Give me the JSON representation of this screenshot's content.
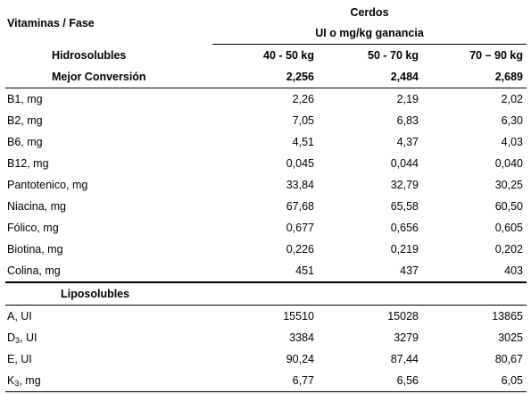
{
  "header": {
    "phase_label": "Vitaminas / Fase",
    "species": "Cerdos",
    "units": "UI o mg/kg ganancia",
    "section_hydro": "Hidrosolubles",
    "weight_ranges": [
      "40 - 50 kg",
      "50 - 70 kg",
      "70 – 90 kg"
    ],
    "conversion_label": "Mejor Conversión",
    "conversion_values": [
      "2,256",
      "2,484",
      "2,689"
    ],
    "section_lipo": "Liposolubles"
  },
  "hydrosoluble_rows": [
    {
      "label": "B1, mg",
      "values": [
        "2,26",
        "2,19",
        "2,02"
      ]
    },
    {
      "label": "B2, mg",
      "values": [
        "7,05",
        "6,83",
        "6,30"
      ]
    },
    {
      "label": "B6, mg",
      "values": [
        "4,51",
        "4,37",
        "4,03"
      ]
    },
    {
      "label": "B12, mg",
      "values": [
        "0,045",
        "0,044",
        "0,040"
      ]
    },
    {
      "label": "Pantotenico, mg",
      "values": [
        "33,84",
        "32,79",
        "30,25"
      ]
    },
    {
      "label": "Niacina, mg",
      "values": [
        "67,68",
        "65,58",
        "60,50"
      ]
    },
    {
      "label": "Fólico, mg",
      "values": [
        "0,677",
        "0,656",
        "0,605"
      ]
    },
    {
      "label": "Biotina, mg",
      "values": [
        "0,226",
        "0,219",
        "0,202"
      ]
    },
    {
      "label": "Colina, mg",
      "values": [
        "451",
        "437",
        "403"
      ]
    }
  ],
  "liposoluble_rows": [
    {
      "label": "A, UI",
      "values": [
        "15510",
        "15028",
        "13865"
      ]
    },
    {
      "label_main": "D",
      "label_sub": "3",
      "label_tail": ", UI",
      "values": [
        "3384",
        "3279",
        "3025"
      ]
    },
    {
      "label": "E, UI",
      "values": [
        "90,24",
        "87,44",
        "80,67"
      ]
    },
    {
      "label_main": "K",
      "label_sub": "3",
      "label_tail": ", mg",
      "values": [
        "6,77",
        "6,56",
        "6,05"
      ]
    }
  ]
}
